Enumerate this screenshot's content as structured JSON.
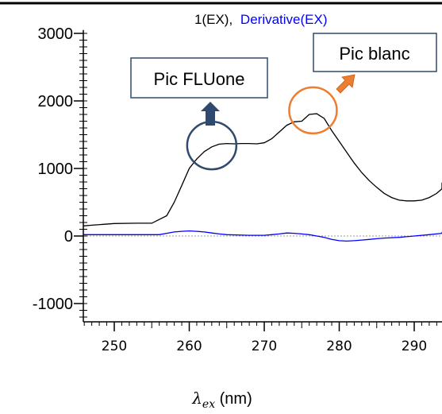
{
  "chart_data": {
    "type": "line",
    "legend": {
      "items": [
        "1(EX),",
        "Derivative(EX)"
      ],
      "colors": [
        "#000000",
        "#0000ff"
      ],
      "placement": "top-center"
    },
    "xlabel_var": "λ",
    "xlabel_sub": "ex",
    "xlabel_unit": " (nm)",
    "xlim": [
      244.5,
      296
    ],
    "ylim": [
      -1250,
      3050
    ],
    "xticks": [
      250,
      260,
      270,
      280,
      290
    ],
    "yticks": [
      3000,
      2000,
      1000,
      0,
      -1000
    ],
    "xtick_labels": [
      "250",
      "260",
      "270",
      "280",
      "290"
    ],
    "ytick_labels": [
      "3000",
      "2000",
      "1000",
      "0",
      "-1000"
    ],
    "grid": false,
    "series": [
      {
        "name": "1(EX)",
        "color": "#000000",
        "x": [
          244.5,
          247,
          250,
          253,
          255,
          257,
          258,
          259,
          260,
          261,
          262,
          263,
          264,
          265,
          266,
          267,
          268,
          269,
          270,
          271,
          272,
          273,
          274,
          275,
          276,
          277,
          278,
          279,
          280,
          281,
          282,
          283,
          284,
          285,
          286,
          287,
          288,
          289,
          290,
          291,
          292,
          293,
          294,
          295,
          296
        ],
        "y": [
          150,
          160,
          185,
          190,
          190,
          300,
          500,
          750,
          1000,
          1140,
          1250,
          1320,
          1360,
          1370,
          1365,
          1370,
          1370,
          1365,
          1380,
          1440,
          1540,
          1640,
          1690,
          1700,
          1800,
          1810,
          1740,
          1560,
          1400,
          1240,
          1080,
          940,
          820,
          720,
          630,
          570,
          530,
          520,
          520,
          530,
          570,
          630,
          700,
          750,
          790
        ]
      },
      {
        "name": "Derivative(EX)",
        "color": "#0000ff",
        "x": [
          244.5,
          250,
          254,
          256,
          257,
          258,
          259,
          260,
          261,
          262,
          263,
          264,
          265,
          268,
          270,
          271,
          272,
          273,
          274,
          275,
          276,
          277,
          278,
          279,
          280,
          281,
          282,
          283,
          284,
          285,
          286,
          288,
          290,
          292,
          294,
          296
        ],
        "y": [
          20,
          20,
          20,
          20,
          40,
          60,
          70,
          75,
          70,
          60,
          45,
          30,
          20,
          10,
          10,
          20,
          30,
          45,
          40,
          30,
          20,
          0,
          -20,
          -50,
          -70,
          -75,
          -70,
          -60,
          -50,
          -40,
          -30,
          -20,
          0,
          20,
          40,
          60
        ]
      }
    ],
    "zero_line": {
      "y": 0,
      "color": "#999999",
      "style": "dotted"
    },
    "annotations": [
      {
        "text": "Pic FLUone",
        "box_border_color": "#2f4a6d",
        "arrow_color": "#2f4a6d",
        "circle_color": "#2f4a6d",
        "circle_x": 263,
        "circle_y": 1340
      },
      {
        "text": "Pic blanc",
        "box_border_color": "#2f4a6d",
        "arrow_color": "#ed7d31",
        "circle_color": "#ed7d31",
        "circle_x": 276.5,
        "circle_y": 1860
      }
    ]
  }
}
